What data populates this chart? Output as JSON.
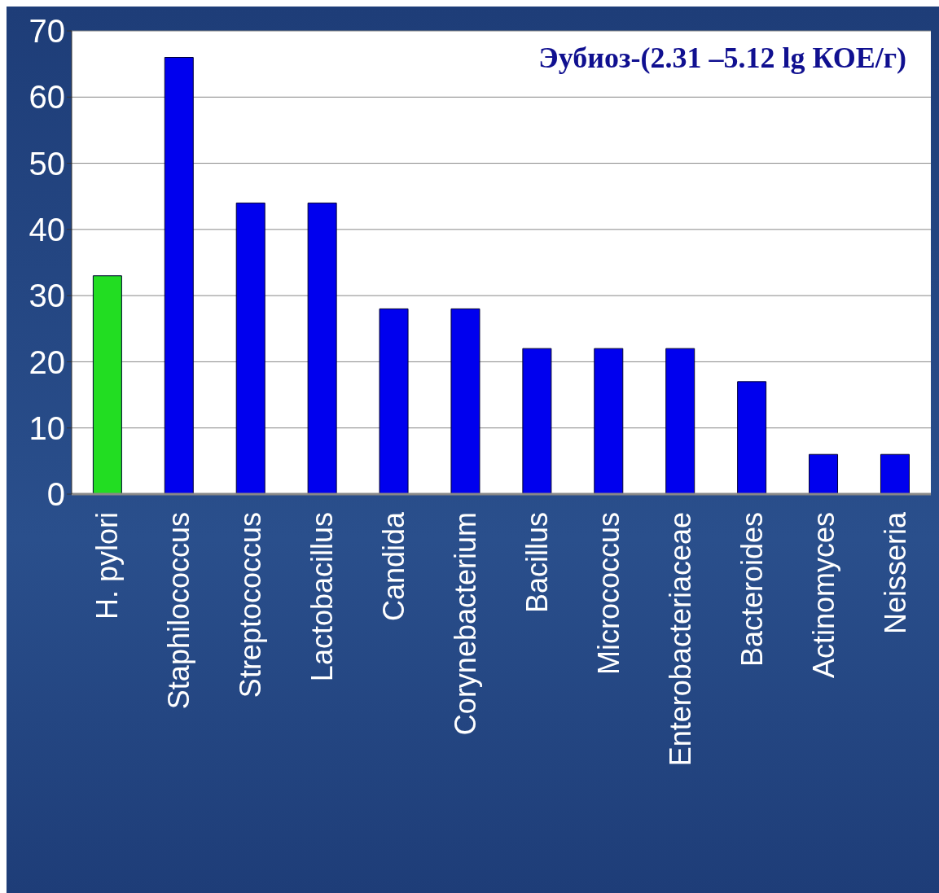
{
  "chart_data": {
    "type": "bar",
    "title": "Эубиоз-(2.31 –5.12 lg КОЕ/г)",
    "categories": [
      "H. pylori",
      "Staphilococcus",
      "Streptococcus",
      "Lactobacillus",
      "Candida",
      "Corynebacterium",
      "Bacillus",
      "Micrococcus",
      "Enterobacteriaceae",
      "Bacteroides",
      "Actinomyces",
      "Neisseria"
    ],
    "values": [
      33,
      66,
      44,
      44,
      28,
      28,
      22,
      22,
      22,
      17,
      6,
      6
    ],
    "colors": [
      "#22dd22",
      "#0000ee",
      "#0000ee",
      "#0000ee",
      "#0000ee",
      "#0000ee",
      "#0000ee",
      "#0000ee",
      "#0000ee",
      "#0000ee",
      "#0000ee",
      "#0000ee"
    ],
    "ylim": [
      0,
      70
    ],
    "yticks": [
      0,
      10,
      20,
      30,
      40,
      50,
      60,
      70
    ],
    "grid": "y"
  }
}
